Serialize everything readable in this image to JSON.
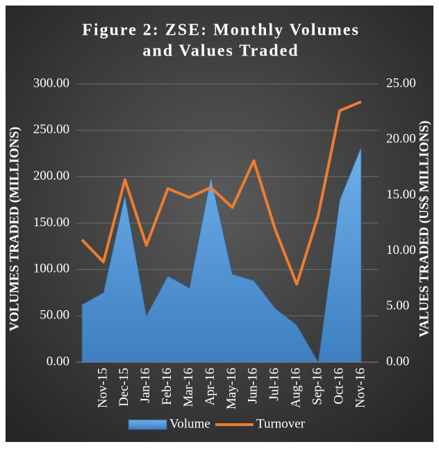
{
  "chart_data": {
    "type": "area_line",
    "title": [
      "Figure 2: ZSE: Monthly Volumes",
      "and Values Traded"
    ],
    "ylabel": "VOLUMES TRADED (MILLIONS)",
    "y2label": "VALUES TRADED (US$ MILLIONS)",
    "categories": [
      null,
      "Nov-15",
      "Dec-15",
      "Jan-16",
      "Feb-16",
      "Mar-16",
      "Apr-16",
      "May-16",
      "Jun-16",
      "Jul-16",
      "Aug-16",
      "Sep-16",
      "Oct-16",
      "Nov-16"
    ],
    "series": [
      {
        "name": "Volume",
        "color": "#5b9bd5",
        "axis": "y",
        "values": [
          62,
          75,
          180,
          50,
          93,
          80,
          200,
          95,
          88,
          58,
          40,
          0,
          175,
          232
        ]
      },
      {
        "name": "Turnover",
        "color": "#ed7d31",
        "axis": "y2",
        "values": [
          11,
          9,
          16.4,
          10.5,
          15.6,
          14.8,
          15.7,
          13.9,
          18.1,
          11.9,
          7,
          13.2,
          22.6,
          23.4
        ]
      }
    ],
    "ylim": [
      0,
      300
    ],
    "yticks": [
      {
        "value": 0,
        "label": "0.00"
      },
      {
        "value": 50,
        "label": "50.00"
      },
      {
        "value": 100,
        "label": "100.00"
      },
      {
        "value": 150,
        "label": "150.00"
      },
      {
        "value": 200,
        "label": "200.00"
      },
      {
        "value": 250,
        "label": "250.00"
      },
      {
        "value": 300,
        "label": "300.00"
      }
    ],
    "y2lim": [
      0,
      25
    ],
    "y2ticks": [
      {
        "value": 0,
        "label": "0.00"
      },
      {
        "value": 5,
        "label": "5.00"
      },
      {
        "value": 10,
        "label": "10.00"
      },
      {
        "value": 15,
        "label": "15.00"
      },
      {
        "value": 20,
        "label": "20.00"
      },
      {
        "value": 25,
        "label": "25.00"
      }
    ],
    "grid": true,
    "legend": "bottom"
  }
}
